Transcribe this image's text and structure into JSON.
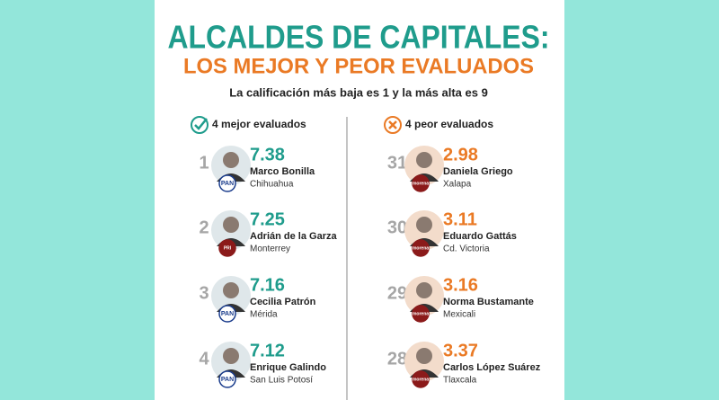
{
  "header": {
    "title": "ALCALDES DE CAPITALES:",
    "subtitle": "LOS MEJOR Y PEOR EVALUADOS",
    "note": "La calificación más baja es 1 y la más alta es 9"
  },
  "columns": [
    {
      "heading": "4 mejor evaluados",
      "rows": [
        {
          "rank": 1,
          "score": 7.38,
          "name": "Marco Bonilla",
          "city": "Chihuahua",
          "party": "PAN"
        },
        {
          "rank": 2,
          "score": 7.25,
          "name": "Adrián de la Garza",
          "city": "Monterrey",
          "party": "PRI"
        },
        {
          "rank": 3,
          "score": 7.16,
          "name": "Cecilia Patrón",
          "city": "Mérida",
          "party": "PAN"
        },
        {
          "rank": 4,
          "score": 7.12,
          "name": "Enrique Galindo",
          "city": "San Luis Potosí",
          "party": "PAN"
        }
      ]
    },
    {
      "heading": "4 peor evaluados",
      "rows": [
        {
          "rank": 31,
          "score": 2.98,
          "name": "Daniela Griego",
          "city": "Xalapa",
          "party": "morena"
        },
        {
          "rank": 30,
          "score": 3.11,
          "name": "Eduardo Gattás",
          "city": "Cd. Victoria",
          "party": "morena"
        },
        {
          "rank": 29,
          "score": 3.16,
          "name": "Norma Bustamante",
          "city": "Mexicali",
          "party": "morena"
        },
        {
          "rank": 28,
          "score": 3.37,
          "name": "Carlos López Suárez",
          "city": "Tlaxcala",
          "party": "morena"
        }
      ]
    }
  ]
}
